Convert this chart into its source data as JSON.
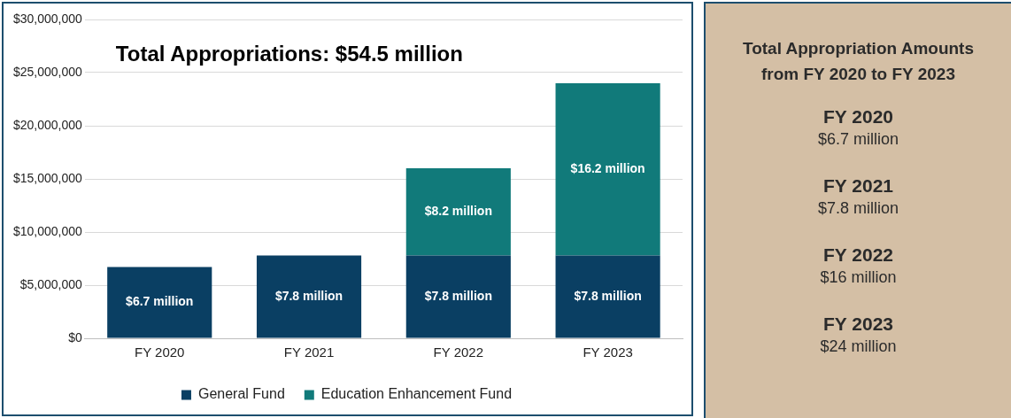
{
  "chart_data": [
    {
      "type": "bar",
      "title": "Total Appropriations: $54.5 million",
      "categories": [
        "FY 2020",
        "FY 2021",
        "FY 2022",
        "FY 2023"
      ],
      "stacked": true,
      "series": [
        {
          "name": "General Fund",
          "color": "#0a3f63",
          "values": [
            6700000,
            7800000,
            7800000,
            7800000
          ],
          "value_labels": [
            "$6.7 million",
            "$7.8 million",
            "$7.8 million",
            "$7.8 million"
          ]
        },
        {
          "name": "Education Enhancement Fund",
          "color": "#117a7a",
          "values": [
            null,
            null,
            8200000,
            16200000
          ],
          "value_labels": [
            null,
            null,
            "$8.2 million",
            "$16.2 million"
          ]
        }
      ],
      "ylim": [
        0,
        30000000
      ],
      "yticks": [
        {
          "value": 0,
          "label": "$0"
        },
        {
          "value": 5000000,
          "label": "$5,000,000"
        },
        {
          "value": 10000000,
          "label": "$10,000,000"
        },
        {
          "value": 15000000,
          "label": "$15,000,000"
        },
        {
          "value": 20000000,
          "label": "$20,000,000"
        },
        {
          "value": 25000000,
          "label": "$25,000,000"
        },
        {
          "value": 30000000,
          "label": "$30,000,000"
        }
      ],
      "grid": "y",
      "legend": "bottom"
    },
    {
      "type": "other",
      "title": "Total Appropriation Amounts from FY 2020 to FY 2023",
      "annotations": [
        "FY 2020",
        "$6.7 million",
        "FY 2021",
        "$7.8 million",
        "FY 2022",
        "$16 million",
        "FY 2023",
        "$24 million"
      ]
    }
  ]
}
